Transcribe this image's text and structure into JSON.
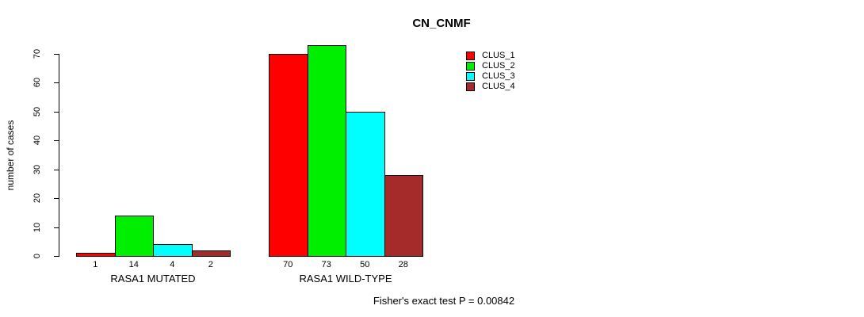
{
  "chart_data": {
    "type": "bar",
    "title": "CN_CNMF",
    "ylabel": "number of cases",
    "xlabel": "",
    "ylim": [
      0,
      70
    ],
    "yticks": [
      0,
      10,
      20,
      30,
      40,
      50,
      60,
      70
    ],
    "categories": [
      "RASA1 MUTATED",
      "RASA1 WILD-TYPE"
    ],
    "series": [
      {
        "name": "CLUS_1",
        "color": "#ff0000",
        "values": [
          1,
          70
        ]
      },
      {
        "name": "CLUS_2",
        "color": "#00ee00",
        "values": [
          14,
          73
        ]
      },
      {
        "name": "CLUS_3",
        "color": "#00ffff",
        "values": [
          4,
          50
        ]
      },
      {
        "name": "CLUS_4",
        "color": "#a52a2a",
        "values": [
          2,
          28
        ]
      }
    ],
    "bar_border_color": "#000000",
    "bar_value_labels_shown": true,
    "legend_position": "top-right",
    "grid": false,
    "annotation": "Fisher's exact test P = 0.00842"
  }
}
